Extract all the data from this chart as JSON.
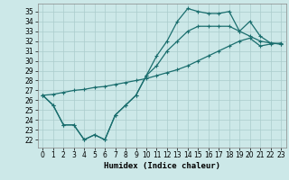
{
  "xlabel": "Humidex (Indice chaleur)",
  "background_color": "#cce8e8",
  "grid_color": "#aacccc",
  "line_color": "#1a6e6e",
  "xlim": [
    -0.5,
    23.5
  ],
  "ylim": [
    21.2,
    35.8
  ],
  "yticks": [
    22,
    23,
    24,
    25,
    26,
    27,
    28,
    29,
    30,
    31,
    32,
    33,
    34,
    35
  ],
  "xticks": [
    0,
    1,
    2,
    3,
    4,
    5,
    6,
    7,
    8,
    9,
    10,
    11,
    12,
    13,
    14,
    15,
    16,
    17,
    18,
    19,
    20,
    21,
    22,
    23
  ],
  "line1_x": [
    0,
    1,
    2,
    3,
    4,
    5,
    6,
    7,
    8,
    9,
    10,
    11,
    12,
    13,
    14,
    15,
    16,
    17,
    18,
    19,
    20,
    21,
    22,
    23
  ],
  "line1_y": [
    26.5,
    25.5,
    23.5,
    23.5,
    22.0,
    22.5,
    22.0,
    24.5,
    25.5,
    26.5,
    28.5,
    30.5,
    32.0,
    34.0,
    35.3,
    35.0,
    34.8,
    34.8,
    35.0,
    33.0,
    34.0,
    32.5,
    31.8,
    31.7
  ],
  "line2_x": [
    0,
    1,
    2,
    3,
    4,
    5,
    6,
    7,
    8,
    9,
    10,
    11,
    12,
    13,
    14,
    15,
    16,
    17,
    18,
    19,
    20,
    21,
    22,
    23
  ],
  "line2_y": [
    26.5,
    26.6,
    26.8,
    27.0,
    27.1,
    27.3,
    27.4,
    27.6,
    27.8,
    28.0,
    28.2,
    28.5,
    28.8,
    29.1,
    29.5,
    30.0,
    30.5,
    31.0,
    31.5,
    32.0,
    32.3,
    31.5,
    31.7,
    31.8
  ],
  "line3_x": [
    0,
    1,
    2,
    3,
    4,
    5,
    6,
    7,
    8,
    9,
    10,
    11,
    12,
    13,
    14,
    15,
    16,
    17,
    18,
    19,
    20,
    21,
    22,
    23
  ],
  "line3_y": [
    26.5,
    25.5,
    23.5,
    23.5,
    22.0,
    22.5,
    22.0,
    24.5,
    25.5,
    26.5,
    28.5,
    29.5,
    31.0,
    32.0,
    33.0,
    33.5,
    33.5,
    33.5,
    33.5,
    33.0,
    32.5,
    32.0,
    31.8,
    31.7
  ],
  "markersize": 3,
  "linewidth": 0.9,
  "tick_fontsize": 5.5,
  "label_fontsize": 6.5
}
